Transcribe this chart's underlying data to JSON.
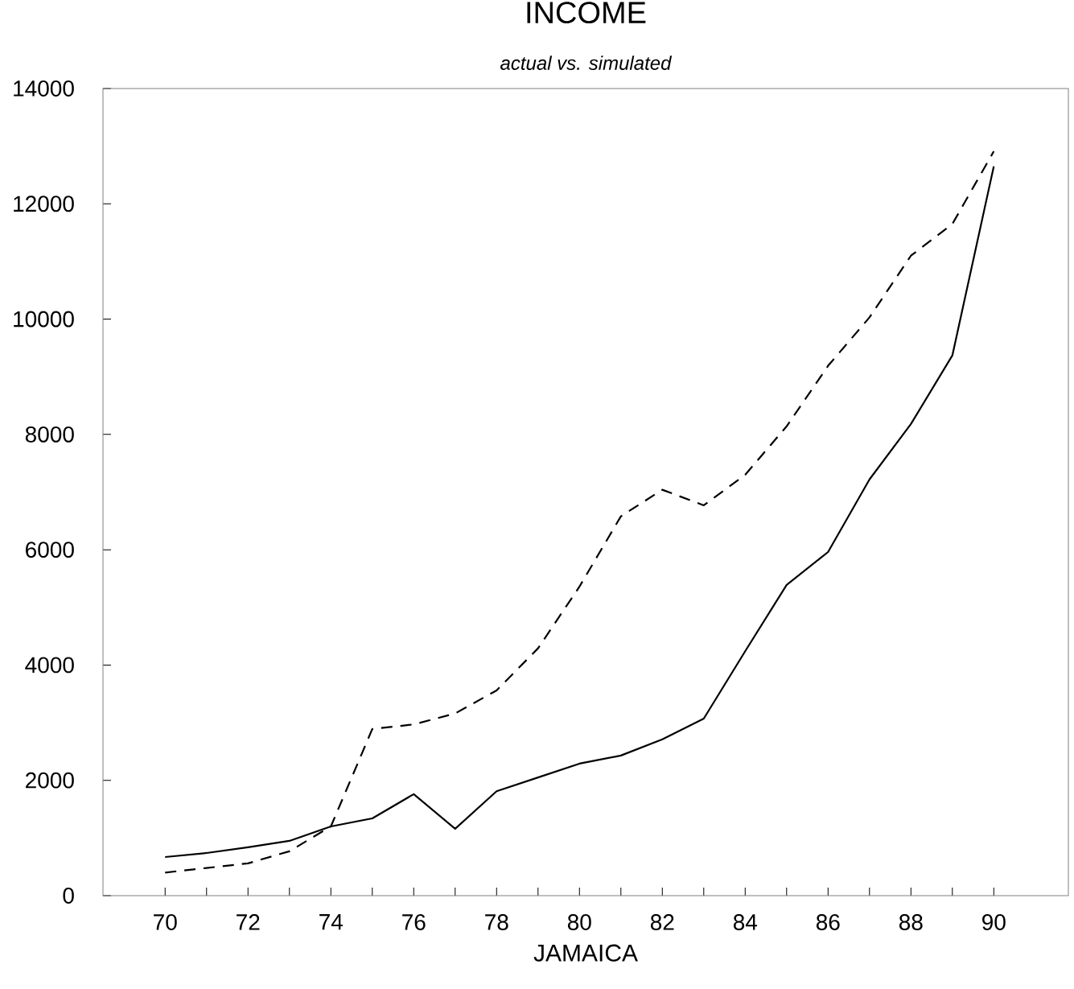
{
  "chart_data": {
    "type": "line",
    "title": "INCOME",
    "subtitle": "actual vs. simulated",
    "xlabel": "JAMAICA",
    "x": [
      70,
      71,
      72,
      73,
      74,
      75,
      76,
      77,
      78,
      79,
      80,
      81,
      82,
      83,
      84,
      85,
      86,
      87,
      88,
      89,
      90
    ],
    "series": [
      {
        "color": "#000000",
        "line_style": "solid",
        "values": [
          670,
          740,
          840,
          950,
          1200,
          1340,
          1760,
          1160,
          1810,
          2050,
          2290,
          2430,
          2710,
          3070,
          4240,
          5390,
          5960,
          7220,
          8180,
          9370,
          12650
        ]
      },
      {
        "color": "#000000",
        "line_style": "dashed",
        "values": [
          400,
          480,
          560,
          770,
          1200,
          2890,
          2970,
          3160,
          3560,
          4290,
          5360,
          6580,
          7040,
          6770,
          7300,
          8140,
          9190,
          10030,
          11100,
          11650,
          12910
        ]
      }
    ],
    "xlim": [
      68.5,
      91.8
    ],
    "ylim": [
      0,
      14000
    ],
    "xticks": [
      70,
      {
        "value": 71,
        "label": null
      },
      72,
      {
        "value": 73,
        "label": null
      },
      74,
      {
        "value": 75,
        "label": null
      },
      76,
      {
        "value": 77,
        "label": null
      },
      78,
      {
        "value": 79,
        "label": null
      },
      80,
      {
        "value": 81,
        "label": null
      },
      82,
      {
        "value": 83,
        "label": null
      },
      84,
      {
        "value": 85,
        "label": null
      },
      86,
      {
        "value": 87,
        "label": null
      },
      88,
      {
        "value": 89,
        "label": null
      },
      90
    ],
    "yticks": [
      0,
      2000,
      4000,
      6000,
      8000,
      10000,
      12000,
      14000
    ],
    "grid": false,
    "legend": false,
    "marker": "none"
  }
}
